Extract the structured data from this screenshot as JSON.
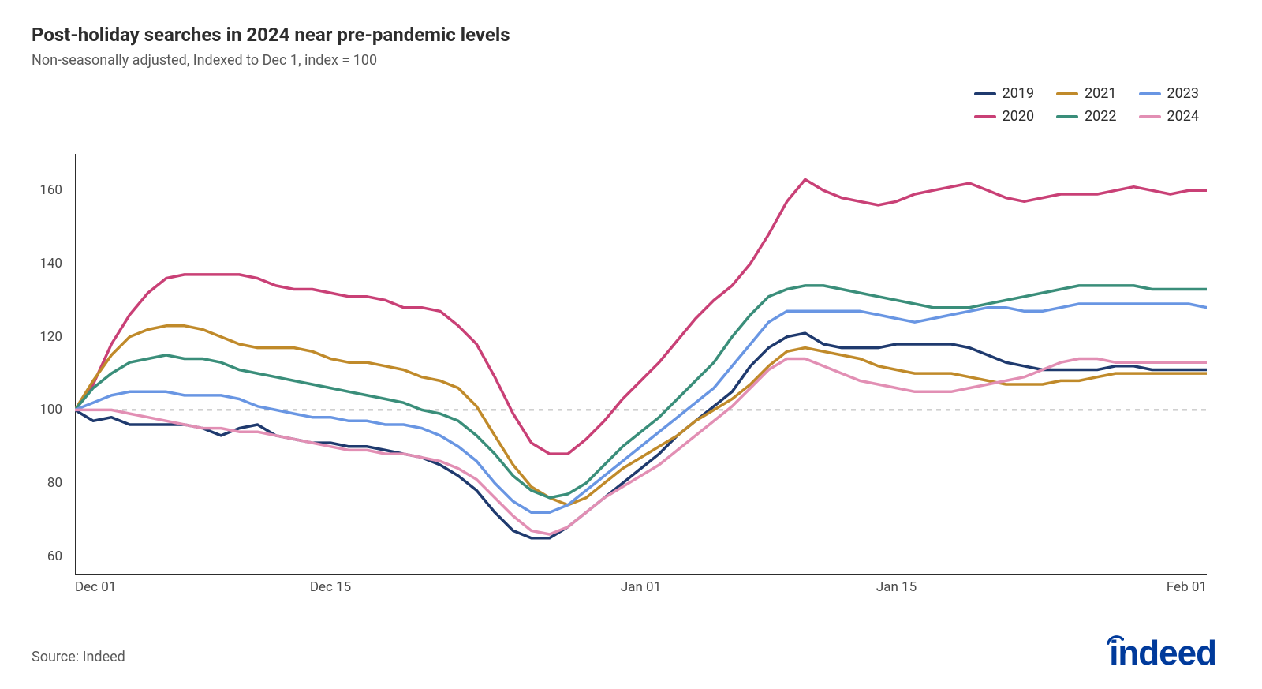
{
  "title": "Post-holiday searches in 2024 near pre-pandemic levels",
  "subtitle": "Non-seasonally adjusted, Indexed to Dec 1, index = 100",
  "source": "Source: Indeed",
  "brand": "indeed",
  "brand_color": "#003a9b",
  "chart": {
    "type": "line",
    "background_color": "#ffffff",
    "axis_color": "#2d2d2d",
    "reference_line_value": 100,
    "reference_line_color": "#b5b5b5",
    "reference_line_dash": "6,6",
    "line_width": 3.5,
    "title_fontsize": 24,
    "subtitle_fontsize": 18,
    "tick_fontsize": 17,
    "legend_fontsize": 18,
    "ylim": [
      55,
      170
    ],
    "yticks": [
      60,
      80,
      100,
      120,
      140,
      160
    ],
    "xlim": [
      0,
      62
    ],
    "xticks": [
      {
        "pos": 0,
        "label": "Dec 01"
      },
      {
        "pos": 14,
        "label": "Dec 15"
      },
      {
        "pos": 31,
        "label": "Jan 01"
      },
      {
        "pos": 45,
        "label": "Jan 15"
      },
      {
        "pos": 62,
        "label": "Feb 01"
      }
    ],
    "series": [
      {
        "name": "2019",
        "color": "#1f3a6e",
        "values": [
          100,
          97,
          98,
          96,
          96,
          96,
          96,
          95,
          93,
          95,
          96,
          93,
          92,
          91,
          91,
          90,
          90,
          89,
          88,
          87,
          85,
          82,
          78,
          72,
          67,
          65,
          65,
          68,
          72,
          76,
          80,
          84,
          88,
          93,
          97,
          101,
          105,
          112,
          117,
          120,
          121,
          118,
          117,
          117,
          117,
          118,
          118,
          118,
          118,
          117,
          115,
          113,
          112,
          111,
          111,
          111,
          111,
          112,
          112,
          111,
          111,
          111,
          111
        ]
      },
      {
        "name": "2020",
        "color": "#c94076",
        "values": [
          100,
          107,
          118,
          126,
          132,
          136,
          137,
          137,
          137,
          137,
          136,
          134,
          133,
          133,
          132,
          131,
          131,
          130,
          128,
          128,
          127,
          123,
          118,
          109,
          99,
          91,
          88,
          88,
          92,
          97,
          103,
          108,
          113,
          119,
          125,
          130,
          134,
          140,
          148,
          157,
          163,
          160,
          158,
          157,
          156,
          157,
          159,
          160,
          161,
          162,
          160,
          158,
          157,
          158,
          159,
          159,
          159,
          160,
          161,
          160,
          159,
          160,
          160
        ]
      },
      {
        "name": "2021",
        "color": "#c08a2a",
        "values": [
          100,
          108,
          115,
          120,
          122,
          123,
          123,
          122,
          120,
          118,
          117,
          117,
          117,
          116,
          114,
          113,
          113,
          112,
          111,
          109,
          108,
          106,
          101,
          93,
          85,
          79,
          76,
          74,
          76,
          80,
          84,
          87,
          90,
          93,
          97,
          100,
          103,
          107,
          112,
          116,
          117,
          116,
          115,
          114,
          112,
          111,
          110,
          110,
          110,
          109,
          108,
          107,
          107,
          107,
          108,
          108,
          109,
          110,
          110,
          110,
          110,
          110,
          110
        ]
      },
      {
        "name": "2022",
        "color": "#3a8e7a",
        "values": [
          100,
          106,
          110,
          113,
          114,
          115,
          114,
          114,
          113,
          111,
          110,
          109,
          108,
          107,
          106,
          105,
          104,
          103,
          102,
          100,
          99,
          97,
          93,
          88,
          82,
          78,
          76,
          77,
          80,
          85,
          90,
          94,
          98,
          103,
          108,
          113,
          120,
          126,
          131,
          133,
          134,
          134,
          133,
          132,
          131,
          130,
          129,
          128,
          128,
          128,
          129,
          130,
          131,
          132,
          133,
          134,
          134,
          134,
          134,
          133,
          133,
          133,
          133
        ]
      },
      {
        "name": "2023",
        "color": "#6996e3",
        "values": [
          100,
          102,
          104,
          105,
          105,
          105,
          104,
          104,
          104,
          103,
          101,
          100,
          99,
          98,
          98,
          97,
          97,
          96,
          96,
          95,
          93,
          90,
          86,
          80,
          75,
          72,
          72,
          74,
          78,
          82,
          86,
          90,
          94,
          98,
          102,
          106,
          112,
          118,
          124,
          127,
          127,
          127,
          127,
          127,
          126,
          125,
          124,
          125,
          126,
          127,
          128,
          128,
          127,
          127,
          128,
          129,
          129,
          129,
          129,
          129,
          129,
          129,
          128
        ]
      },
      {
        "name": "2024",
        "color": "#e28fb4",
        "values": [
          100,
          100,
          100,
          99,
          98,
          97,
          96,
          95,
          95,
          94,
          94,
          93,
          92,
          91,
          90,
          89,
          89,
          88,
          88,
          87,
          86,
          84,
          81,
          76,
          71,
          67,
          66,
          68,
          72,
          76,
          79,
          82,
          85,
          89,
          93,
          97,
          101,
          106,
          111,
          114,
          114,
          112,
          110,
          108,
          107,
          106,
          105,
          105,
          105,
          106,
          107,
          108,
          109,
          111,
          113,
          114,
          114,
          113,
          113,
          113,
          113,
          113,
          113
        ]
      }
    ]
  }
}
